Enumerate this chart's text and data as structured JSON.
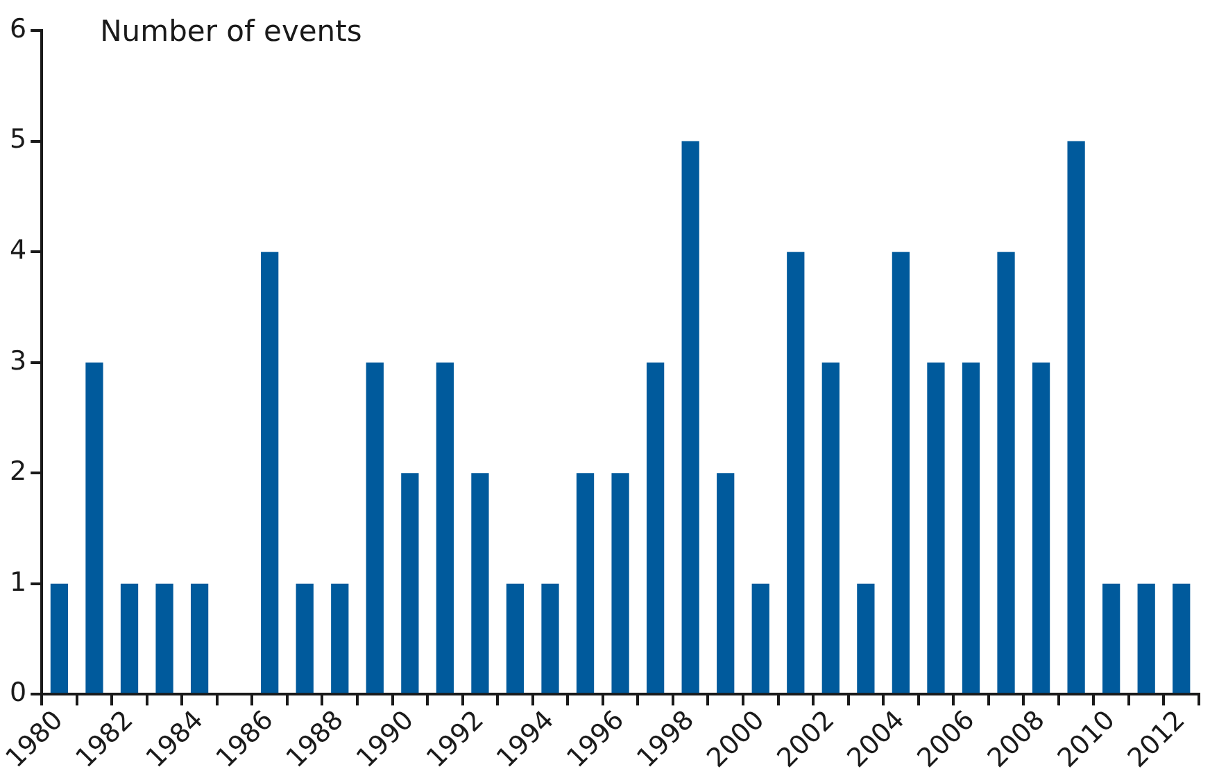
{
  "chart_data": {
    "type": "bar",
    "ylabel": "Number of events",
    "categories": [
      "1980",
      null,
      "1982",
      null,
      "1984",
      null,
      "1986",
      null,
      "1988",
      null,
      "1990",
      null,
      "1992",
      null,
      "1994",
      null,
      "1996",
      null,
      "1998",
      null,
      "2000",
      null,
      "2002",
      null,
      "2004",
      null,
      "2006",
      null,
      "2008",
      null,
      "2010",
      null,
      "2012"
    ],
    "series": [
      {
        "color": "#005a9c",
        "values": [
          1,
          3,
          1,
          1,
          1,
          0,
          4,
          1,
          1,
          3,
          2,
          3,
          2,
          1,
          1,
          2,
          2,
          3,
          5,
          2,
          1,
          4,
          3,
          1,
          4,
          3,
          3,
          4,
          3,
          5,
          1,
          1,
          1
        ]
      }
    ],
    "ylim": [
      0,
      6
    ],
    "yticks": [
      0,
      1,
      2,
      3,
      4,
      5,
      6
    ],
    "grid": false,
    "legend": false
  }
}
